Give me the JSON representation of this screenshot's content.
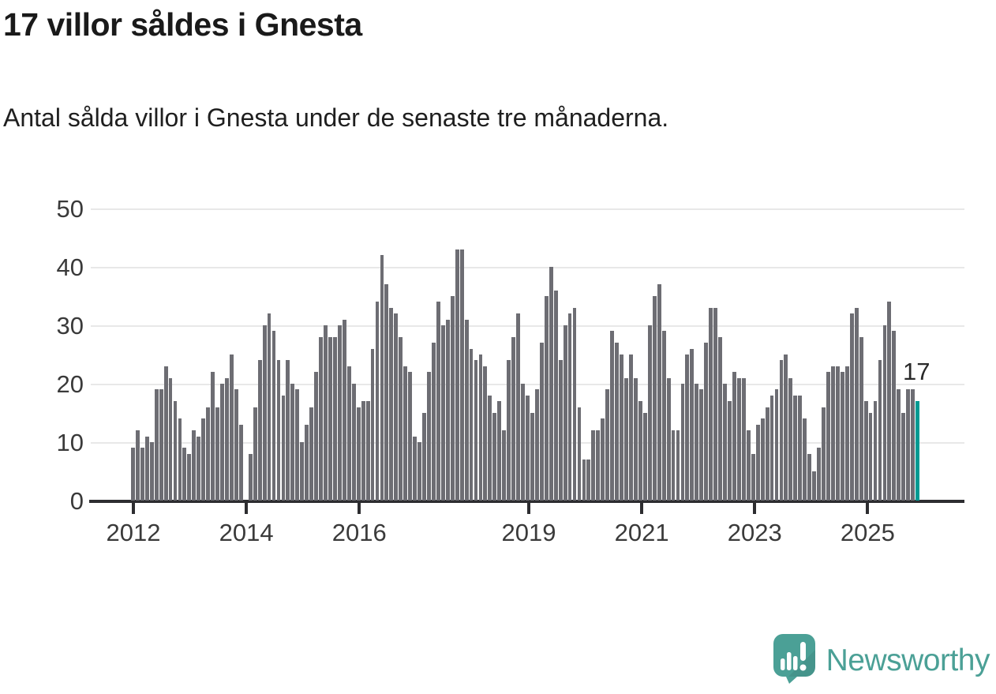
{
  "header": {
    "title": "17 villor såldes i Gnesta",
    "subtitle": "Antal sålda villor i Gnesta under de senaste tre månaderna."
  },
  "chart_data": {
    "type": "bar",
    "title": "17 villor såldes i Gnesta",
    "xlabel": "",
    "ylabel": "",
    "ylim": [
      0,
      50
    ],
    "grid": "horizontal",
    "frequency": "monthly",
    "start": "2012-01",
    "yticks": [
      0,
      10,
      20,
      30,
      40,
      50
    ],
    "xticks": [
      {
        "label": "2012",
        "index": 0
      },
      {
        "label": "2014",
        "index": 24
      },
      {
        "label": "2016",
        "index": 48
      },
      {
        "label": "2019",
        "index": 84
      },
      {
        "label": "2021",
        "index": 108
      },
      {
        "label": "2023",
        "index": 132
      },
      {
        "label": "2025",
        "index": 156
      }
    ],
    "values": [
      9,
      12,
      9,
      11,
      10,
      19,
      19,
      23,
      21,
      17,
      14,
      9,
      8,
      12,
      11,
      14,
      16,
      22,
      16,
      20,
      21,
      25,
      19,
      13,
      0,
      8,
      16,
      24,
      30,
      32,
      29,
      24,
      18,
      24,
      20,
      19,
      10,
      13,
      16,
      22,
      28,
      30,
      28,
      28,
      30,
      31,
      23,
      20,
      16,
      17,
      17,
      26,
      34,
      42,
      37,
      33,
      32,
      28,
      23,
      22,
      11,
      10,
      15,
      22,
      27,
      34,
      30,
      31,
      35,
      43,
      43,
      31,
      26,
      24,
      25,
      23,
      18,
      15,
      17,
      12,
      24,
      28,
      32,
      20,
      18,
      15,
      19,
      27,
      35,
      40,
      36,
      24,
      30,
      32,
      33,
      16,
      7,
      7,
      12,
      12,
      14,
      19,
      29,
      27,
      25,
      21,
      25,
      21,
      17,
      15,
      30,
      35,
      37,
      29,
      21,
      12,
      12,
      20,
      25,
      26,
      20,
      19,
      27,
      33,
      33,
      28,
      20,
      17,
      22,
      21,
      21,
      12,
      8,
      13,
      14,
      16,
      18,
      19,
      24,
      25,
      21,
      18,
      18,
      14,
      8,
      5,
      9,
      16,
      22,
      23,
      23,
      22,
      23,
      32,
      33,
      28,
      17,
      15,
      17,
      24,
      30,
      34,
      29,
      19,
      15,
      19,
      19,
      17
    ],
    "highlight": {
      "index": 167,
      "value": 17,
      "label": "17",
      "color": "#009a92"
    },
    "bar_color": "#6d6d73"
  },
  "annotation": {
    "last_value_label": "17"
  },
  "footer": {
    "brand": "Newsworthy"
  },
  "colors": {
    "accent_teal": "#009a92",
    "bar_gray": "#6d6d73",
    "logo_teal": "#4ba096",
    "gridline": "#e8e8e8",
    "axis": "#2d2d30",
    "text": "#1a1a1a"
  }
}
